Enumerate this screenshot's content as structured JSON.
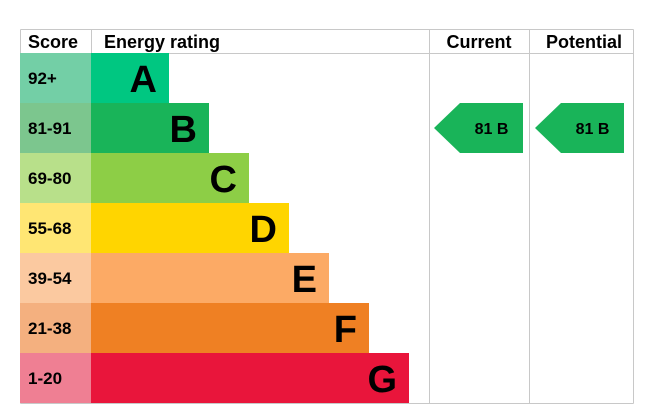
{
  "header": {
    "score": "Score",
    "energy_rating": "Energy rating",
    "current": "Current",
    "potential": "Potential"
  },
  "chart_data": {
    "type": "bar",
    "title": "",
    "categories": [
      "92+",
      "81-91",
      "69-80",
      "55-68",
      "39-54",
      "21-38",
      "1-20"
    ],
    "bands": [
      {
        "score": "92+",
        "letter": "A",
        "color": "#00c781",
        "score_bg": "#73cfa6"
      },
      {
        "score": "81-91",
        "letter": "B",
        "color": "#19b459",
        "score_bg": "#7cc68e"
      },
      {
        "score": "69-80",
        "letter": "C",
        "color": "#8dce46",
        "score_bg": "#b8e08a"
      },
      {
        "score": "55-68",
        "letter": "D",
        "color": "#ffd500",
        "score_bg": "#ffe673"
      },
      {
        "score": "39-54",
        "letter": "E",
        "color": "#fcaa65",
        "score_bg": "#fbc9a0"
      },
      {
        "score": "21-38",
        "letter": "F",
        "color": "#ef8023",
        "score_bg": "#f4b07f"
      },
      {
        "score": "1-20",
        "letter": "G",
        "color": "#e9153b",
        "score_bg": "#ef7f93"
      }
    ],
    "current": {
      "value": 81,
      "band": "B",
      "label": "81 B",
      "color": "#19b459"
    },
    "potential": {
      "value": 81,
      "band": "B",
      "label": "81 B",
      "color": "#19b459"
    }
  }
}
